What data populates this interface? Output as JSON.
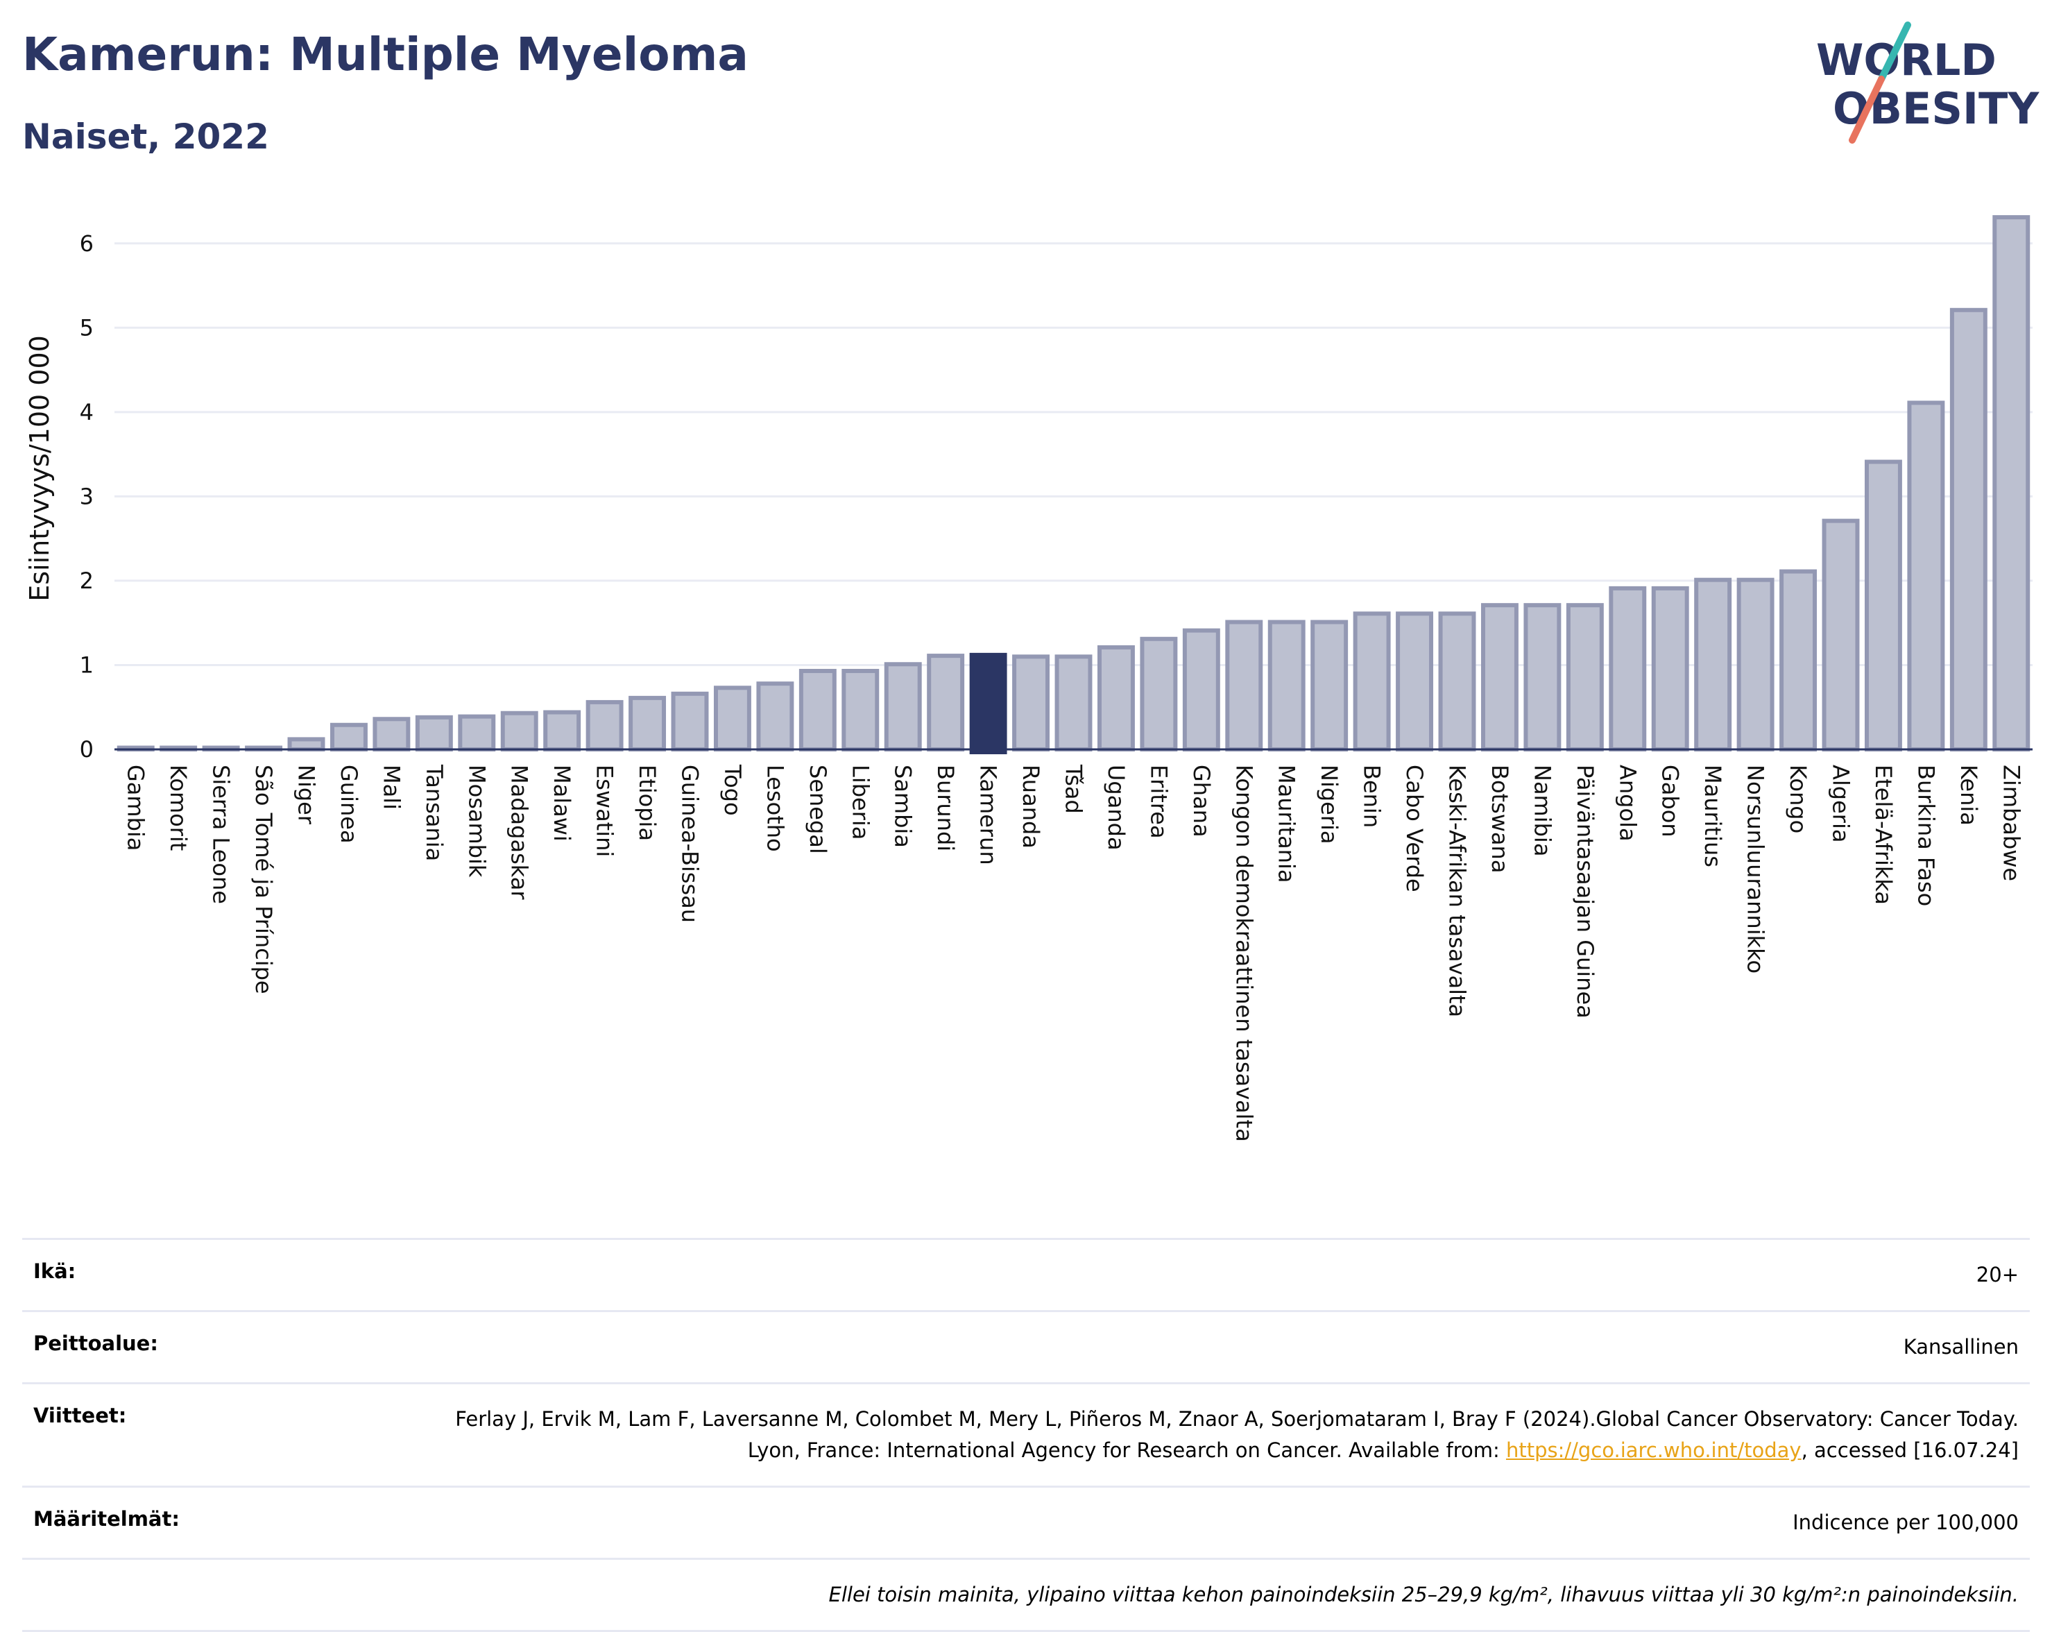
{
  "header": {
    "title": "Kamerun: Multiple Myeloma",
    "subtitle": "Naiset, 2022",
    "logo_line1": "WORLD",
    "logo_line2": "OBESITY"
  },
  "colors": {
    "bar_fill": "#bcc0d0",
    "bar_stroke": "#9398b3",
    "highlight": "#2b3664",
    "title": "#2b3664",
    "logo_teal": "#36b6b0",
    "logo_coral": "#e8735e"
  },
  "chart_data": {
    "type": "bar",
    "ylabel": "Esiintyvyys/100 000",
    "ylim": [
      0,
      6.5
    ],
    "yticks": [
      0,
      1,
      2,
      3,
      4,
      5,
      6
    ],
    "grid": true,
    "highlight": "Kamerun",
    "categories": [
      "Gambia",
      "Komorit",
      "Sierra Leone",
      "São Tomé ja Príncipe",
      "Niger",
      "Guinea",
      "Mali",
      "Tansania",
      "Mosambik",
      "Madagaskar",
      "Malawi",
      "Eswatini",
      "Etiopia",
      "Guinea-Bissau",
      "Togo",
      "Lesotho",
      "Senegal",
      "Liberia",
      "Sambia",
      "Burundi",
      "Kamerun",
      "Ruanda",
      "Tšad",
      "Uganda",
      "Eritrea",
      "Ghana",
      "Kongon demokraattinen tasavalta",
      "Mauritania",
      "Nigeria",
      "Benin",
      "Cabo Verde",
      "Keski-Afrikan tasavalta",
      "Botswana",
      "Namibia",
      "Päiväntasaajan Guinea",
      "Angola",
      "Gabon",
      "Mauritius",
      "Norsunluurannikko",
      "Kongo",
      "Algeria",
      "Etelä-Afrikka",
      "Burkina Faso",
      "Kenia",
      "Zimbabwe"
    ],
    "values": [
      0.02,
      0.02,
      0.02,
      0.02,
      0.12,
      0.29,
      0.36,
      0.38,
      0.39,
      0.43,
      0.44,
      0.56,
      0.61,
      0.66,
      0.73,
      0.78,
      0.93,
      0.93,
      1.01,
      1.11,
      1.12,
      1.1,
      1.1,
      1.21,
      1.31,
      1.41,
      1.51,
      1.51,
      1.51,
      1.61,
      1.61,
      1.61,
      1.71,
      1.71,
      1.71,
      1.91,
      1.91,
      2.01,
      2.01,
      2.11,
      2.71,
      3.41,
      4.11,
      5.21,
      6.31
    ]
  },
  "info": {
    "age_key": "Ikä:",
    "age_val": "20+",
    "coverage_key": "Peittoalue:",
    "coverage_val": "Kansallinen",
    "refs_key": "Viitteet:",
    "refs_text1": "Ferlay J, Ervik M, Lam F, Laversanne M, Colombet M, Mery L, Piñeros M, Znaor A, Soerjomataram I, Bray F (2024).Global Cancer Observatory: Cancer Today. Lyon, France: International Agency for Research on Cancer. Available from: ",
    "refs_link": "https://gco.iarc.who.int/today",
    "refs_text2": ", accessed [16.07.24]",
    "defs_key": "Määritelmät:",
    "defs_val": "Indicence per 100,000",
    "note": "Ellei toisin mainita, ylipaino viittaa kehon painoindeksiin 25–29,9 kg/m², lihavuus viittaa yli 30 kg/m²:n painoindeksiin."
  }
}
